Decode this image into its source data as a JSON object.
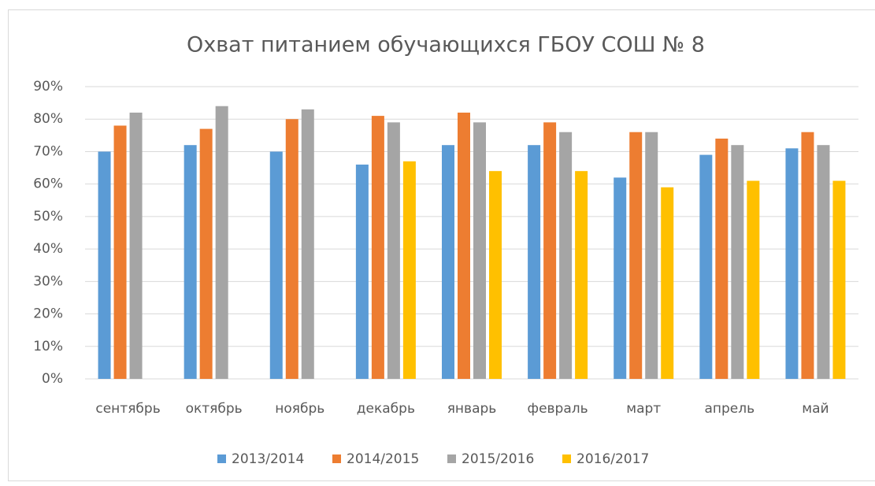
{
  "chart_data": {
    "type": "bar",
    "title": "Охват питанием обучающихся ГБОУ СОШ № 8",
    "categories": [
      "сентябрь",
      "октябрь",
      "ноябрь",
      "декабрь",
      "январь",
      "февраль",
      "март",
      "апрель",
      "май"
    ],
    "series": [
      {
        "name": "2013/2014",
        "color": "#5b9bd5",
        "values": [
          70,
          72,
          70,
          66,
          72,
          72,
          62,
          69,
          71
        ]
      },
      {
        "name": "2014/2015",
        "color": "#ed7d31",
        "values": [
          78,
          77,
          80,
          81,
          82,
          79,
          76,
          74,
          76
        ]
      },
      {
        "name": "2015/2016",
        "color": "#a5a5a5",
        "values": [
          82,
          84,
          83,
          79,
          79,
          76,
          76,
          72,
          72
        ]
      },
      {
        "name": "2016/2017",
        "color": "#ffc000",
        "values": [
          null,
          null,
          null,
          67,
          64,
          64,
          59,
          61,
          61
        ]
      }
    ],
    "ylim": [
      0,
      90
    ],
    "yticks": [
      {
        "value": 0,
        "label": "0%"
      },
      {
        "value": 10,
        "label": "10%"
      },
      {
        "value": 20,
        "label": "20%"
      },
      {
        "value": 30,
        "label": "30%"
      },
      {
        "value": 40,
        "label": "40%"
      },
      {
        "value": 50,
        "label": "50%"
      },
      {
        "value": 60,
        "label": "60%"
      },
      {
        "value": 70,
        "label": "70%"
      },
      {
        "value": 80,
        "label": "80%"
      },
      {
        "value": 90,
        "label": "90%"
      }
    ],
    "grid": true,
    "legend": "bottom"
  }
}
